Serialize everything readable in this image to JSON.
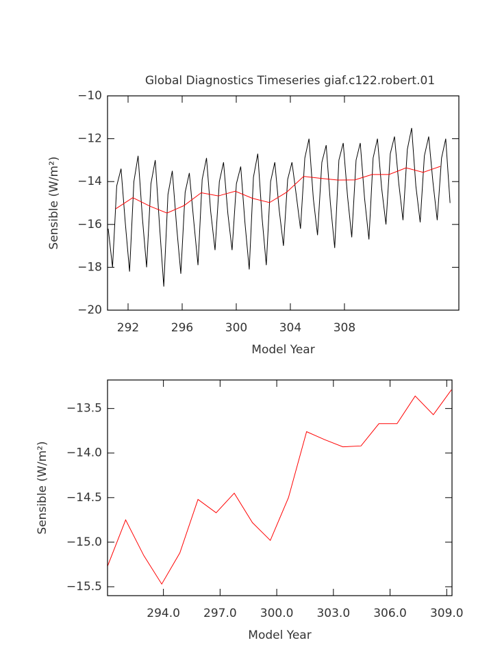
{
  "chart_data": [
    {
      "type": "line",
      "title": "Global Diagnostics Timeseries giaf.c122.robert.01",
      "xlabel": "Model Year",
      "ylabel": "Sensible (W/m²)",
      "xlim": [
        290.48,
        316.46
      ],
      "xticks": [
        292,
        296,
        300,
        304,
        308
      ],
      "ylim": [
        -20,
        -10
      ],
      "yticks": [
        {
          "value": -20,
          "label": "−20"
        },
        {
          "value": -18,
          "label": "−18"
        },
        {
          "value": -16,
          "label": "−16"
        },
        {
          "value": -14,
          "label": "−14"
        },
        {
          "value": -12,
          "label": "−12"
        },
        {
          "value": -10,
          "label": "−10"
        }
      ],
      "series": [
        {
          "color": "#000000",
          "x": [
            290.53,
            290.85,
            291.16,
            291.48,
            291.79,
            292.11,
            292.43,
            292.74,
            293.06,
            293.37,
            293.69,
            294.01,
            294.32,
            294.64,
            294.95,
            295.27,
            295.59,
            295.9,
            296.22,
            296.53,
            296.85,
            297.17,
            297.48,
            297.8,
            298.11,
            298.43,
            298.75,
            299.06,
            299.38,
            299.69,
            300.01,
            300.33,
            300.64,
            300.96,
            301.27,
            301.59,
            301.91,
            302.22,
            302.54,
            302.85,
            303.17,
            303.49,
            303.8,
            304.12,
            304.43,
            304.75,
            305.07,
            305.38,
            305.7,
            306.01,
            306.33,
            306.65,
            306.96,
            307.28,
            307.59,
            307.91,
            308.23,
            308.54,
            308.86,
            309.17,
            309.49,
            309.81,
            310.12,
            310.44,
            310.75,
            311.07,
            311.39,
            311.7,
            312.02,
            312.33,
            312.65,
            312.97,
            313.28,
            313.6,
            313.91,
            314.23,
            314.54,
            314.86,
            315.18,
            315.49,
            315.81
          ],
          "values": [
            -16.2,
            -18.0,
            -14.2,
            -13.4,
            -15.9,
            -18.2,
            -14.0,
            -12.8,
            -15.7,
            -18.0,
            -14.1,
            -13.0,
            -16.0,
            -18.9,
            -14.6,
            -13.5,
            -16.1,
            -18.3,
            -14.5,
            -13.6,
            -15.8,
            -17.9,
            -13.9,
            -12.9,
            -15.4,
            -17.2,
            -14.0,
            -13.1,
            -15.5,
            -17.2,
            -14.1,
            -13.3,
            -15.9,
            -18.1,
            -13.8,
            -12.7,
            -15.7,
            -17.9,
            -14.0,
            -13.1,
            -15.3,
            -17.0,
            -13.9,
            -13.1,
            -14.6,
            -16.2,
            -12.9,
            -12.0,
            -14.8,
            -16.5,
            -13.1,
            -12.3,
            -15.0,
            -17.1,
            -13.0,
            -12.2,
            -14.7,
            -16.6,
            -13.0,
            -12.2,
            -14.8,
            -16.7,
            -12.9,
            -12.0,
            -14.3,
            -16.0,
            -12.7,
            -11.9,
            -14.1,
            -15.8,
            -12.5,
            -11.5,
            -14.2,
            -15.9,
            -12.8,
            -11.9,
            -14.0,
            -15.8,
            -12.9,
            -12.0,
            -15.0
          ]
        },
        {
          "color": "#ff0000",
          "x": [
            291.09,
            292.35,
            293.62,
            294.88,
            296.14,
            297.41,
            298.67,
            299.93,
            301.19,
            302.46,
            303.72,
            304.98,
            306.25,
            307.51,
            308.77,
            310.04,
            311.3,
            312.56,
            313.82,
            315.09
          ],
          "values": [
            -15.27,
            -14.75,
            -15.15,
            -15.47,
            -15.12,
            -14.52,
            -14.67,
            -14.45,
            -14.78,
            -14.98,
            -14.5,
            -13.76,
            -13.85,
            -13.93,
            -13.92,
            -13.67,
            -13.67,
            -13.36,
            -13.57,
            -13.29
          ]
        }
      ]
    },
    {
      "type": "line",
      "xlabel": "Model Year",
      "ylabel": "Sensible (W/m²)",
      "xlim": [
        291.04,
        309.28
      ],
      "xticks": [
        {
          "value": 294,
          "label": "294.0"
        },
        {
          "value": 297,
          "label": "297.0"
        },
        {
          "value": 300,
          "label": "300.0"
        },
        {
          "value": 303,
          "label": "303.0"
        },
        {
          "value": 306,
          "label": "306.0"
        },
        {
          "value": 309,
          "label": "309.0"
        }
      ],
      "ylim": [
        -15.6,
        -13.18
      ],
      "yticks": [
        {
          "value": -15.5,
          "label": "−15.5"
        },
        {
          "value": -15,
          "label": "−15.0"
        },
        {
          "value": -14.5,
          "label": "−14.5"
        },
        {
          "value": -14,
          "label": "−14.0"
        },
        {
          "value": -13.5,
          "label": "−13.5"
        }
      ],
      "series": [
        {
          "color": "#ff0000",
          "x": [
            291.04,
            292.0,
            292.96,
            293.91,
            294.87,
            295.83,
            296.79,
            297.75,
            298.71,
            299.66,
            300.62,
            301.58,
            302.54,
            303.5,
            304.46,
            305.41,
            306.37,
            307.33,
            308.29,
            309.25
          ],
          "values": [
            -15.27,
            -14.75,
            -15.15,
            -15.47,
            -15.12,
            -14.52,
            -14.67,
            -14.45,
            -14.78,
            -14.98,
            -14.5,
            -13.76,
            -13.85,
            -13.93,
            -13.92,
            -13.67,
            -13.67,
            -13.36,
            -13.57,
            -13.29
          ]
        }
      ]
    }
  ]
}
